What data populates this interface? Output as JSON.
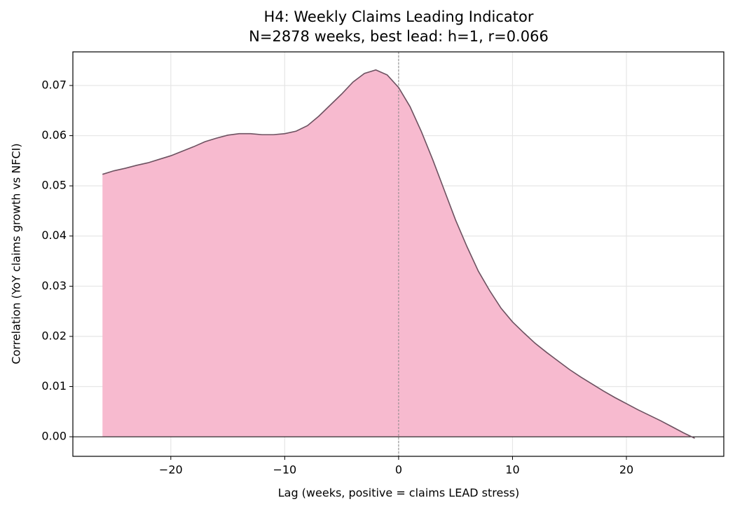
{
  "chart_data": {
    "type": "area",
    "title": "H4: Weekly Claims Leading Indicator",
    "subtitle": "N=2878 weeks, best lead: h=1, r=0.066",
    "xlabel": "Lag (weeks, positive = claims LEAD stress)",
    "ylabel": "Correlation (YoY claims growth vs NFCI)",
    "x": [
      -26,
      -25,
      -24,
      -23,
      -22,
      -21,
      -20,
      -19,
      -18,
      -17,
      -16,
      -15,
      -14,
      -13,
      -12,
      -11,
      -10,
      -9,
      -8,
      -7,
      -6,
      -5,
      -4,
      -3,
      -2,
      -1,
      0,
      1,
      2,
      3,
      4,
      5,
      6,
      7,
      8,
      9,
      10,
      11,
      12,
      13,
      14,
      15,
      16,
      17,
      18,
      19,
      20,
      21,
      22,
      23,
      24,
      25,
      26
    ],
    "values": [
      0.0523,
      0.053,
      0.0535,
      0.0541,
      0.0546,
      0.0553,
      0.056,
      0.0569,
      0.0578,
      0.0588,
      0.0595,
      0.0601,
      0.0604,
      0.0604,
      0.0602,
      0.0602,
      0.0604,
      0.0609,
      0.062,
      0.0639,
      0.0661,
      0.0683,
      0.0707,
      0.0724,
      0.0731,
      0.0721,
      0.0696,
      0.0658,
      0.0608,
      0.0552,
      0.0492,
      0.0432,
      0.0379,
      0.033,
      0.0291,
      0.0256,
      0.0229,
      0.0207,
      0.0186,
      0.0168,
      0.0151,
      0.0134,
      0.0119,
      0.0105,
      0.0091,
      0.0078,
      0.0066,
      0.0054,
      0.0043,
      0.0032,
      0.002,
      0.0008,
      -0.0003
    ],
    "color": "#6d5261",
    "fill_color": "#f7bacf",
    "xlim": [
      -28.6,
      28.55
    ],
    "ylim": [
      -0.0039,
      0.0767
    ],
    "xticks": [
      {
        "value": -20,
        "label": "−20"
      },
      {
        "value": -10,
        "label": "−10"
      },
      0,
      10,
      20
    ],
    "yticks": [
      {
        "value": 0,
        "label": "0.00"
      },
      0.01,
      0.02,
      0.03,
      0.04,
      0.05,
      0.06,
      0.07
    ],
    "vline": 0,
    "hline": 0,
    "grid": true
  }
}
